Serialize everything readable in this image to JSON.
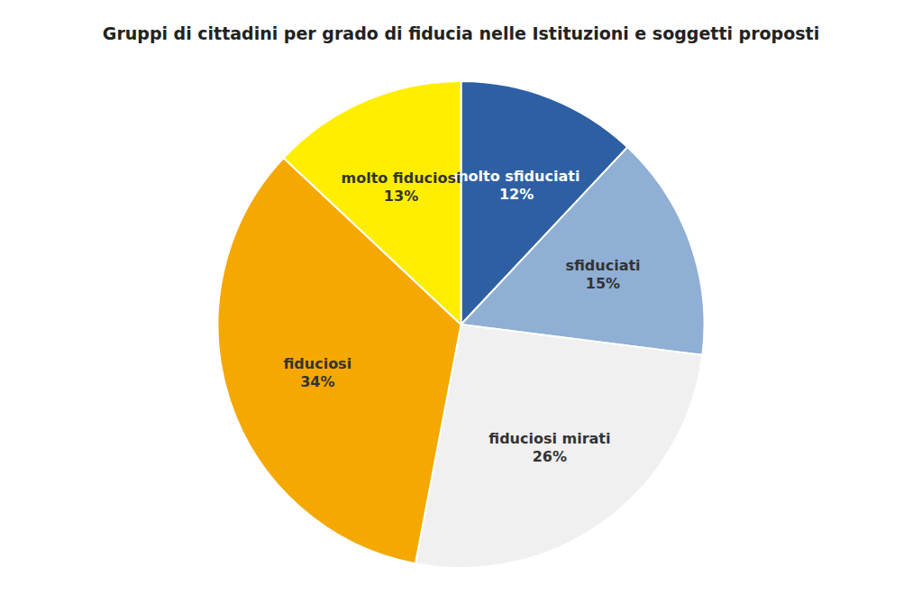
{
  "chart_data": {
    "type": "pie",
    "title": "Gruppi di cittadini per grado di fiducia nelle Istituzioni e soggetti proposti",
    "categories": [
      "molto sfiduciati",
      "sfiduciati",
      "fiduciosi mirati",
      "fiduciosi",
      "molto fiduciosi"
    ],
    "values": [
      12,
      15,
      26,
      34,
      13
    ],
    "value_labels": [
      "12%",
      "15%",
      "26%",
      "34%",
      "13%"
    ],
    "data_labels": true,
    "colors": [
      "#2E5FA3",
      "#8FAFD4",
      "#f0f0f0",
      "#F5A800",
      "#FFEE00"
    ]
  }
}
